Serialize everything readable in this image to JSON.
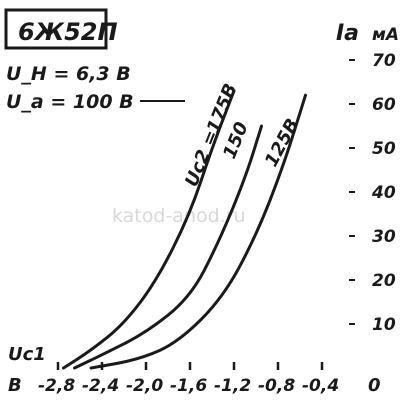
{
  "chart_data": {
    "type": "line",
    "title": "6Ж52П",
    "conditions": [
      "U_H = 6,3 B",
      "U_a = 100 B"
    ],
    "xlabel": "Uc1",
    "x_unit": "B",
    "ylabel": "Ia",
    "y_unit": "mA",
    "xlim": [
      -2.8,
      -0.4
    ],
    "ylim": [
      0,
      70
    ],
    "x_ticks": [
      -2.8,
      -2.4,
      -2.0,
      -1.6,
      -1.2,
      -0.8,
      -0.4
    ],
    "x_tick_labels": [
      "-2,8",
      "-2,4",
      "-2,0",
      "-1,6",
      "-1,2",
      "-0,8",
      "-0,4"
    ],
    "y_ticks": [
      10,
      20,
      30,
      40,
      50,
      60,
      70
    ],
    "y_tick_labels": [
      "10",
      "20",
      "30",
      "40",
      "50",
      "60",
      "70"
    ],
    "y_zero_label": "0",
    "x_left_label": "B",
    "y_unit_label": "мА",
    "series_label_prefix": "Uc2 =",
    "series": [
      {
        "name": "175B",
        "x": [
          -2.75,
          -2.5,
          -2.2,
          -1.9,
          -1.6,
          -1.4,
          -1.2
        ],
        "y": [
          0,
          4,
          10,
          20,
          35,
          50,
          63
        ]
      },
      {
        "name": "150",
        "x": [
          -2.65,
          -2.4,
          -2.0,
          -1.6,
          -1.35,
          -1.1,
          -0.95
        ],
        "y": [
          0,
          3,
          8,
          16,
          28,
          43,
          55
        ]
      },
      {
        "name": "125B",
        "x": [
          -2.5,
          -2.05,
          -1.7,
          -1.3,
          -1.0,
          -0.75,
          -0.55
        ],
        "y": [
          0,
          2,
          6,
          16,
          30,
          46,
          62
        ]
      }
    ],
    "grid": false,
    "watermark": "katod-anod.ru",
    "colors": {
      "ink": "#1a1a1a",
      "watermark": "#d8d8d8"
    }
  }
}
